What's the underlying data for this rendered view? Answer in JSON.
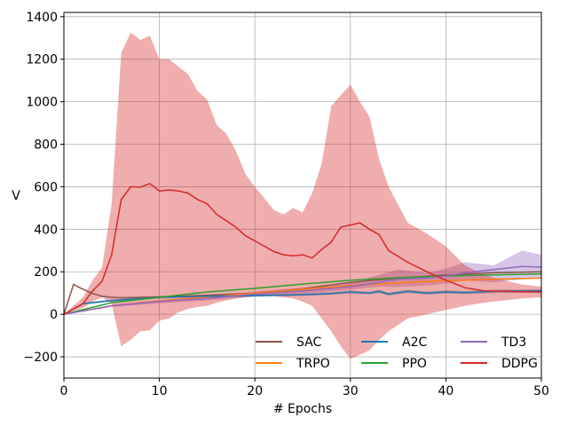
{
  "chart_data": {
    "type": "line",
    "title": "",
    "xlabel": "# Epochs",
    "ylabel": "V",
    "xlim": [
      0,
      50
    ],
    "ylim": [
      -300,
      1420
    ],
    "xticks": [
      0,
      10,
      20,
      30,
      40,
      50
    ],
    "yticks": [
      -200,
      0,
      200,
      400,
      600,
      800,
      1000,
      1200,
      1400
    ],
    "grid": true,
    "legend": {
      "placement": "lower-right",
      "columns": 3
    },
    "series": [
      {
        "name": "SAC",
        "color": "#8c564b",
        "x": [
          0,
          1,
          2,
          3,
          4,
          5,
          6,
          10,
          15,
          20,
          25,
          30,
          35,
          40,
          45,
          50
        ],
        "y": [
          0,
          140,
          118,
          98,
          85,
          80,
          78,
          82,
          90,
          100,
          120,
          150,
          170,
          185,
          195,
          200
        ],
        "band": null
      },
      {
        "name": "TRPO",
        "color": "#ff7f0e",
        "x": [
          0,
          5,
          10,
          15,
          20,
          25,
          30,
          35,
          40,
          45,
          50
        ],
        "y": [
          0,
          40,
          62,
          82,
          100,
          118,
          135,
          148,
          158,
          165,
          170
        ],
        "band": null
      },
      {
        "name": "A2C",
        "color": "#1f77b4",
        "x": [
          0,
          2,
          5,
          10,
          15,
          20,
          25,
          28,
          30,
          32,
          33,
          34,
          36,
          38,
          40,
          42,
          45,
          50
        ],
        "y": [
          0,
          50,
          65,
          80,
          85,
          88,
          92,
          98,
          105,
          100,
          108,
          95,
          108,
          100,
          105,
          102,
          108,
          110
        ],
        "band": {
          "lower": [
            0,
            45,
            60,
            74,
            80,
            83,
            86,
            92,
            98,
            94,
            100,
            88,
            100,
            93,
            98,
            95,
            100,
            102
          ],
          "upper": [
            0,
            55,
            70,
            86,
            90,
            93,
            98,
            104,
            112,
            106,
            116,
            102,
            116,
            107,
            112,
            109,
            116,
            118
          ]
        }
      },
      {
        "name": "PPO",
        "color": "#2ca02c",
        "x": [
          0,
          5,
          10,
          15,
          20,
          25,
          30,
          35,
          40,
          45,
          50
        ],
        "y": [
          0,
          55,
          80,
          105,
          122,
          142,
          160,
          172,
          180,
          185,
          190
        ],
        "band": null
      },
      {
        "name": "TD3",
        "color": "#9467bd",
        "x": [
          0,
          5,
          10,
          15,
          20,
          25,
          30,
          33,
          35,
          38,
          40,
          42,
          45,
          48,
          50
        ],
        "y": [
          0,
          40,
          60,
          75,
          95,
          110,
          130,
          150,
          165,
          170,
          180,
          195,
          210,
          225,
          222
        ],
        "band": {
          "lower": [
            0,
            35,
            52,
            65,
            83,
            96,
            116,
            130,
            128,
            135,
            145,
            160,
            150,
            165,
            170
          ],
          "upper": [
            0,
            45,
            68,
            85,
            107,
            124,
            150,
            185,
            210,
            195,
            215,
            245,
            230,
            300,
            280
          ]
        }
      },
      {
        "name": "DDPG",
        "color": "#d62728",
        "x": [
          0,
          2,
          3,
          4,
          5,
          6,
          7,
          8,
          9,
          10,
          11,
          12,
          13,
          14,
          15,
          16,
          17,
          18,
          19,
          20,
          21,
          22,
          23,
          24,
          25,
          26,
          27,
          28,
          29,
          30,
          31,
          32,
          33,
          34,
          36,
          38,
          40,
          42,
          44,
          46,
          48,
          50
        ],
        "y": [
          0,
          50,
          110,
          155,
          280,
          540,
          600,
          598,
          615,
          580,
          585,
          580,
          570,
          540,
          520,
          470,
          440,
          410,
          370,
          345,
          320,
          295,
          280,
          275,
          280,
          265,
          305,
          340,
          410,
          420,
          430,
          400,
          375,
          300,
          245,
          200,
          160,
          125,
          110,
          108,
          106,
          105
        ],
        "band": {
          "lower": [
            0,
            30,
            60,
            80,
            50,
            -150,
            -120,
            -80,
            -75,
            -30,
            -20,
            10,
            25,
            35,
            40,
            55,
            65,
            75,
            80,
            85,
            85,
            85,
            80,
            75,
            60,
            40,
            -20,
            -80,
            -150,
            -210,
            -190,
            -170,
            -120,
            -80,
            -20,
            0,
            20,
            40,
            55,
            65,
            75,
            80
          ],
          "upper": [
            0,
            80,
            160,
            220,
            520,
            1230,
            1325,
            1290,
            1310,
            1200,
            1200,
            1165,
            1130,
            1050,
            1010,
            890,
            850,
            770,
            660,
            600,
            545,
            490,
            470,
            500,
            480,
            570,
            710,
            980,
            1030,
            1080,
            1000,
            930,
            730,
            600,
            430,
            380,
            320,
            230,
            185,
            160,
            140,
            130
          ]
        }
      }
    ]
  }
}
